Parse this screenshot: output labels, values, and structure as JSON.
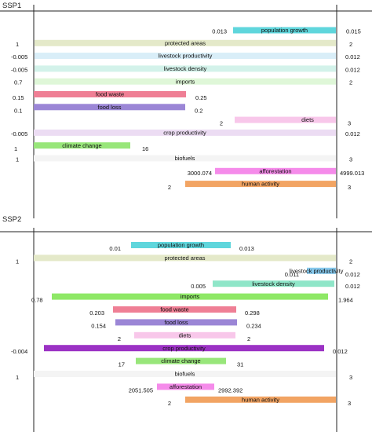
{
  "chart_data": [
    {
      "type": "bar",
      "title": "SSP1",
      "bars": [
        {
          "label": "population growth",
          "min": "0.013",
          "max": "0.015",
          "color": "#5fd6dc",
          "faded": false
        },
        {
          "label": "protected areas",
          "min": "1",
          "max": "2",
          "color": "#e4e9c9",
          "faded": true
        },
        {
          "label": "livestock productivity",
          "min": "-0.005",
          "max": "0.012",
          "color": "#d9eef8",
          "faded": true
        },
        {
          "label": "livestock density",
          "min": "-0.005",
          "max": "0.012",
          "color": "#d3f2ea",
          "faded": true
        },
        {
          "label": "imports",
          "min": "0.7",
          "max": "2",
          "color": "#dff7d8",
          "faded": true
        },
        {
          "label": "food waste",
          "min": "0.15",
          "max": "0.25",
          "color": "#ef7f95",
          "faded": false
        },
        {
          "label": "food loss",
          "min": "0.1",
          "max": "0.2",
          "color": "#9b86d6",
          "faded": false
        },
        {
          "label": "diets",
          "min": "2",
          "max": "3",
          "color": "#f8c7ea",
          "faded": false
        },
        {
          "label": "crop productivity",
          "min": "-0.005",
          "max": "0.012",
          "color": "#ecdcf3",
          "faded": true
        },
        {
          "label": "climate change",
          "min": "1",
          "max": "16",
          "color": "#98e67a",
          "faded": false
        },
        {
          "label": "biofuels",
          "min": "1",
          "max": "3",
          "color": "#f4f4f4",
          "faded": true
        },
        {
          "label": "afforestation",
          "min": "3000.074",
          "max": "4999.013",
          "color": "#f58bea",
          "faded": false
        },
        {
          "label": "human activity",
          "min": "2",
          "max": "3",
          "color": "#f2a463",
          "faded": false
        }
      ]
    },
    {
      "type": "bar",
      "title": "SSP2",
      "bars": [
        {
          "label": "population growth",
          "min": "0.01",
          "max": "0.013",
          "color": "#5fd6dc",
          "faded": false
        },
        {
          "label": "protected areas",
          "min": "1",
          "max": "2",
          "color": "#e4e9c9",
          "faded": true
        },
        {
          "label": "livestock productivity",
          "min": "0.011",
          "max": "0.012",
          "color": "#86c8ec",
          "faded": false
        },
        {
          "label": "livestock density",
          "min": "0.005",
          "max": "0.012",
          "color": "#8fe6c8",
          "faded": false
        },
        {
          "label": "imports",
          "min": "0.78",
          "max": "1.964",
          "color": "#8ee866",
          "faded": false
        },
        {
          "label": "food waste",
          "min": "0.203",
          "max": "0.298",
          "color": "#ef7f95",
          "faded": false
        },
        {
          "label": "food loss",
          "min": "0.154",
          "max": "0.234",
          "color": "#9b86d6",
          "faded": false
        },
        {
          "label": "diets",
          "min": "2",
          "max": "2",
          "color": "#f8c7ea",
          "faded": false
        },
        {
          "label": "crop productivity",
          "min": "-0.004",
          "max": "0.012",
          "color": "#9b32c4",
          "faded": false
        },
        {
          "label": "climate change",
          "min": "17",
          "max": "31",
          "color": "#98e67a",
          "faded": false
        },
        {
          "label": "biofuels",
          "min": "1",
          "max": "3",
          "color": "#f4f4f4",
          "faded": true
        },
        {
          "label": "afforestation",
          "min": "2051.505",
          "max": "2992.392",
          "color": "#f58bea",
          "faded": false
        },
        {
          "label": "human activity",
          "min": "2",
          "max": "3",
          "color": "#f2a463",
          "faded": false
        }
      ]
    }
  ]
}
